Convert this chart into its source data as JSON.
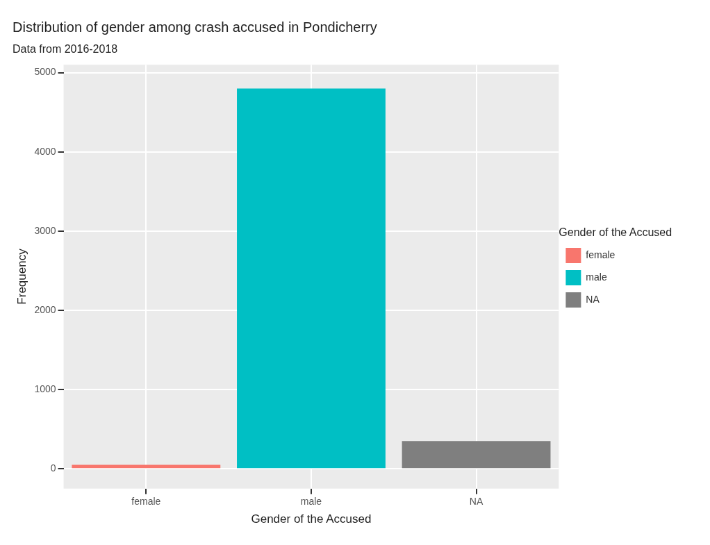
{
  "chart_data": {
    "type": "bar",
    "title": "Distribution of gender among crash accused in Pondicherry",
    "subtitle": "Data from 2016-2018",
    "xlabel": "Gender of the Accused",
    "ylabel": "Frequency",
    "legend_title": "Gender of the Accused",
    "categories": [
      "female",
      "male",
      "NA"
    ],
    "series": [
      {
        "name": "female",
        "color": "#f8766d",
        "values": [
          50,
          null,
          null
        ]
      },
      {
        "name": "male",
        "color": "#00bfc4",
        "values": [
          null,
          4800,
          null
        ]
      },
      {
        "name": "NA",
        "color": "#7f7f7f",
        "values": [
          null,
          null,
          350
        ]
      }
    ],
    "ylim": [
      -250,
      5100
    ],
    "yticks": [
      0,
      1000,
      2000,
      3000,
      4000,
      5000
    ],
    "grid": true,
    "legend": "right"
  }
}
